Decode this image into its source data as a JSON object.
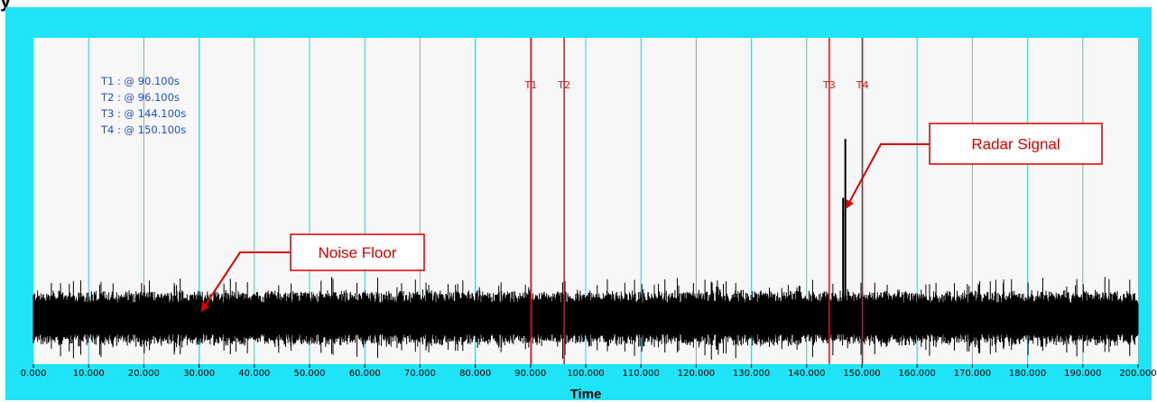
{
  "window": {
    "frame_color": "#1fe3f7",
    "plot_bg": "#f7f7f7",
    "title_fragment": "y"
  },
  "chart_data": {
    "type": "line",
    "xlabel": "Time",
    "xlim": [
      0,
      200
    ],
    "x_ticks": [
      0,
      10,
      20,
      30,
      40,
      50,
      60,
      70,
      80,
      90,
      100,
      110,
      120,
      130,
      140,
      150,
      160,
      170,
      180,
      190,
      200
    ],
    "x_tick_labels": [
      "0.000",
      "10.000",
      "20.000",
      "30.000",
      "40.000",
      "50.000",
      "60.000",
      "70.000",
      "80.000",
      "90.000",
      "100.000",
      "110.000",
      "120.000",
      "130.000",
      "140.000",
      "150.000",
      "160.000",
      "170.000",
      "180.000",
      "190.000",
      "200.000"
    ],
    "grid": true,
    "grid_color": "#39c9e0",
    "ylim": [
      0,
      1
    ],
    "noise_floor": {
      "center": 0.14,
      "amplitude": 0.09,
      "peak_amplitude": 0.13
    },
    "signal_spikes": [
      {
        "x": 122.8,
        "y": 0.25
      },
      {
        "x": 138.7,
        "y": 0.24
      },
      {
        "x": 146.6,
        "y": 0.51
      },
      {
        "x": 147.0,
        "y": 0.69
      }
    ],
    "series_color": "#000000",
    "cursors": [
      {
        "name": "T1",
        "x": 90.1,
        "readout": "T1 : @ 90.100s"
      },
      {
        "name": "T2",
        "x": 96.1,
        "readout": "T2 : @ 96.100s"
      },
      {
        "name": "T3",
        "x": 144.1,
        "readout": "T3 : @ 144.100s"
      },
      {
        "name": "T4",
        "x": 150.1,
        "readout": "T4 : @ 150.100s"
      }
    ],
    "cursor_color": "#e01010",
    "annotations": [
      {
        "text": "Noise Floor",
        "target": {
          "x": 30.5,
          "y": 0.165
        }
      },
      {
        "text": "Radar Signal",
        "target": {
          "x": 147.2,
          "y": 0.48
        }
      }
    ],
    "annotation_color": "#d80000"
  }
}
